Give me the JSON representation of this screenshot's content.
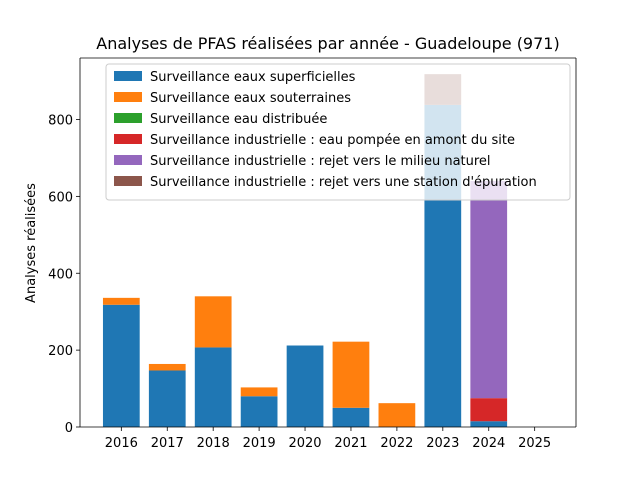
{
  "chart_data": {
    "type": "bar",
    "stacked": true,
    "title": "Analyses de PFAS réalisées par année - Guadeloupe (971)",
    "xlabel": "",
    "ylabel": "Analyses réalisées",
    "ylim": [
      0,
      960
    ],
    "yticks": [
      0,
      200,
      400,
      600,
      800
    ],
    "grid": false,
    "legend_position": "top",
    "categories": [
      "2016",
      "2017",
      "2018",
      "2019",
      "2020",
      "2021",
      "2022",
      "2023",
      "2024",
      "2025"
    ],
    "series": [
      {
        "name": "Surveillance eaux superficielles",
        "color": "#1f77b4",
        "values": [
          318,
          147,
          207,
          80,
          212,
          50,
          0,
          838,
          15,
          0
        ]
      },
      {
        "name": "Surveillance eaux souterraines",
        "color": "#ff7f0e",
        "values": [
          18,
          17,
          133,
          23,
          0,
          172,
          62,
          0,
          0,
          0
        ]
      },
      {
        "name": "Surveillance eau distribuée",
        "color": "#2ca02c",
        "values": [
          0,
          0,
          0,
          0,
          0,
          0,
          0,
          0,
          0,
          0
        ]
      },
      {
        "name": "Surveillance industrielle : eau pompée en amont du site",
        "color": "#d62728",
        "values": [
          0,
          0,
          0,
          0,
          0,
          0,
          0,
          0,
          60,
          0
        ]
      },
      {
        "name": "Surveillance industrielle : rejet vers le milieu naturel",
        "color": "#9467bd",
        "values": [
          0,
          0,
          0,
          0,
          0,
          0,
          0,
          0,
          565,
          0
        ]
      },
      {
        "name": "Surveillance industrielle : rejet vers une station d'épuration",
        "color": "#8c564b",
        "values": [
          0,
          0,
          0,
          0,
          0,
          0,
          0,
          80,
          0,
          0
        ]
      }
    ]
  }
}
